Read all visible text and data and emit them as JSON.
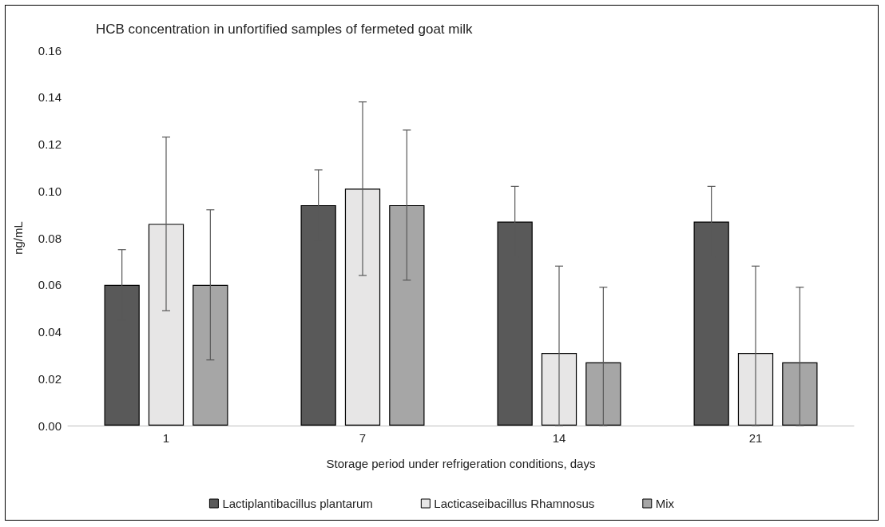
{
  "chart_data": {
    "type": "bar",
    "title": "HCB concentration in unfortified samples of fermeted goat milk",
    "xlabel": "Storage period under refrigeration conditions, days",
    "ylabel": "ng/mL",
    "categories": [
      "1",
      "7",
      "14",
      "21"
    ],
    "series": [
      {
        "name": "Lactiplantibacillus plantarum",
        "color": "#595959",
        "values": [
          0.06,
          0.094,
          0.087,
          0.087
        ],
        "errors": [
          0.015,
          0.015,
          0.015,
          0.015
        ]
      },
      {
        "name": "Lacticaseibacillus Rhamnosus",
        "color": "#e7e6e6",
        "values": [
          0.086,
          0.101,
          0.031,
          0.031
        ],
        "errors": [
          0.037,
          0.037,
          [
            0,
            0.068
          ],
          [
            0,
            0.068
          ]
        ]
      },
      {
        "name": "Mix",
        "color": "#a6a6a6",
        "values": [
          0.06,
          0.094,
          0.027,
          0.027
        ],
        "errors": [
          0.032,
          0.032,
          [
            0,
            0.059
          ],
          [
            0,
            0.059
          ]
        ]
      }
    ],
    "ylim": [
      0,
      0.16
    ],
    "yticks": [
      {
        "value": 0,
        "label": "0.00"
      },
      {
        "value": 0.02,
        "label": "0.02"
      },
      {
        "value": 0.04,
        "label": "0.04"
      },
      {
        "value": 0.06,
        "label": "0.06"
      },
      {
        "value": 0.08,
        "label": "0.08"
      },
      {
        "value": 0.1,
        "label": "0.10"
      },
      {
        "value": 0.12,
        "label": "0.12"
      },
      {
        "value": 0.14,
        "label": "0.14"
      },
      {
        "value": 0.16,
        "label": "0.16"
      }
    ],
    "grid": false,
    "legend": "bottom"
  }
}
